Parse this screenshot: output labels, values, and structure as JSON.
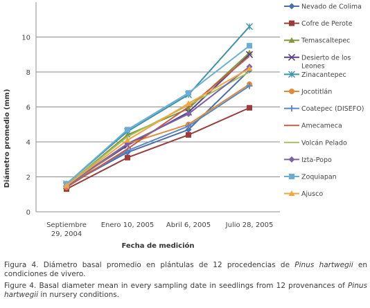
{
  "chart_data": {
    "type": "line",
    "xlabel": "Fecha de medición",
    "ylabel": "Diámetro promedio (mm)",
    "categories": [
      "Septiembre 29, 2004",
      "Enero 10, 2005",
      "Abril 6, 2005",
      "Julio 28, 2005"
    ],
    "ylim": [
      0,
      12
    ],
    "yticks": [
      0,
      2,
      4,
      6,
      8,
      10
    ],
    "grid": true,
    "legend_position": "right",
    "series": [
      {
        "name": "Nevado de Colima",
        "values": [
          1.5,
          3.4,
          4.7,
          8.1
        ],
        "color": "#4a6fae",
        "marker": "diamond"
      },
      {
        "name": "Cofre de Perote",
        "values": [
          1.3,
          3.1,
          4.4,
          5.95
        ],
        "color": "#9b3c39",
        "marker": "square"
      },
      {
        "name": "Temascaltepec",
        "values": [
          1.5,
          4.4,
          5.9,
          9.1
        ],
        "color": "#7d9a3c",
        "marker": "triangle"
      },
      {
        "name": "Desierto de los Leones",
        "values": [
          1.5,
          3.8,
          5.7,
          9.0
        ],
        "color": "#5b3f85",
        "marker": "x"
      },
      {
        "name": "Zinacantepec",
        "values": [
          1.6,
          4.6,
          6.7,
          10.6
        ],
        "color": "#3e93ab",
        "marker": "star"
      },
      {
        "name": "Jocotitlán",
        "values": [
          1.4,
          3.9,
          5.0,
          7.3
        ],
        "color": "#e08b3a",
        "marker": "circle"
      },
      {
        "name": "Coatepec (DISEFO)",
        "values": [
          1.5,
          3.5,
          4.9,
          7.2
        ],
        "color": "#5b86c4",
        "marker": "plus"
      },
      {
        "name": "Amecameca",
        "values": [
          1.4,
          3.6,
          6.0,
          8.9
        ],
        "color": "#c55a4a",
        "marker": "none"
      },
      {
        "name": "Volcán Pelado",
        "values": [
          1.5,
          4.3,
          6.1,
          8.0
        ],
        "color": "#a4c05a",
        "marker": "none"
      },
      {
        "name": "Izta-Popo",
        "values": [
          1.5,
          3.9,
          5.6,
          8.3
        ],
        "color": "#7a62a8",
        "marker": "diamond"
      },
      {
        "name": "Zoquiapan",
        "values": [
          1.6,
          4.7,
          6.8,
          9.5
        ],
        "color": "#6aaed6",
        "marker": "square"
      },
      {
        "name": "Ajusco",
        "values": [
          1.5,
          4.1,
          6.2,
          8.2
        ],
        "color": "#f2a540",
        "marker": "triangle"
      }
    ]
  },
  "caption_es": {
    "prefix": "Figura 4. Diámetro basal promedio en plántulas de 12 procedencias de ",
    "species": "Pinus hartwegii",
    "suffix": " en condiciones de vivero."
  },
  "caption_en": {
    "prefix": "Figure 4. Basal diameter mean in every sampling date in seedlings from 12 provenances of ",
    "species": "Pinus hartwegii",
    "suffix": " in nursery conditions."
  }
}
